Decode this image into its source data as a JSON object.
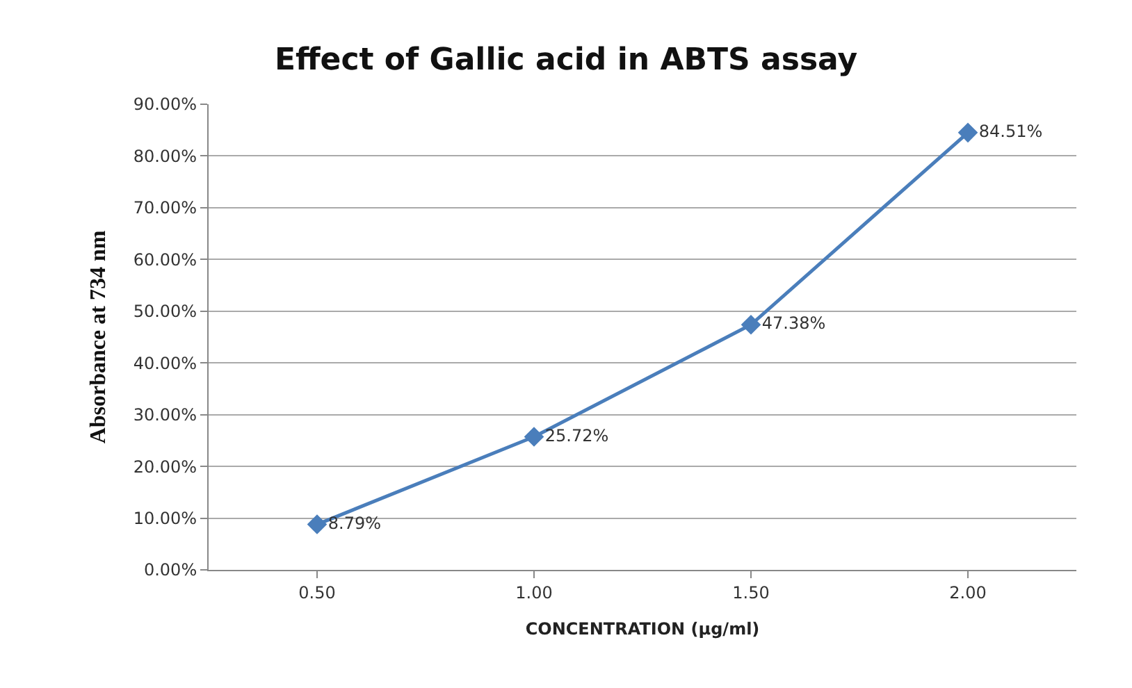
{
  "chart_data": {
    "type": "line",
    "title": "Effect of Gallic acid in ABTS assay",
    "xlabel": "CONCENTRATION (µg/ml)",
    "ylabel": "Absorbance at 734 nm",
    "categories": [
      "0.50",
      "1.00",
      "1.50",
      "2.00"
    ],
    "series": [
      {
        "color": "#4a7ebb",
        "values": [
          8.79,
          25.72,
          47.38,
          84.51
        ],
        "value_labels": [
          "8.79%",
          "25.72%",
          "47.38%",
          "84.51%"
        ]
      }
    ],
    "ylim": [
      0,
      90
    ],
    "yticks": [
      {
        "value": 0,
        "label": "0.00%"
      },
      {
        "value": 10,
        "label": "10.00%"
      },
      {
        "value": 20,
        "label": "20.00%"
      },
      {
        "value": 30,
        "label": "30.00%"
      },
      {
        "value": 40,
        "label": "40.00%"
      },
      {
        "value": 50,
        "label": "50.00%"
      },
      {
        "value": 60,
        "label": "60.00%"
      },
      {
        "value": 70,
        "label": "70.00%"
      },
      {
        "value": 80,
        "label": "80.00%"
      },
      {
        "value": 90,
        "label": "90.00%"
      }
    ],
    "grid": "y",
    "marker": "diamond",
    "line_style": "solid"
  }
}
